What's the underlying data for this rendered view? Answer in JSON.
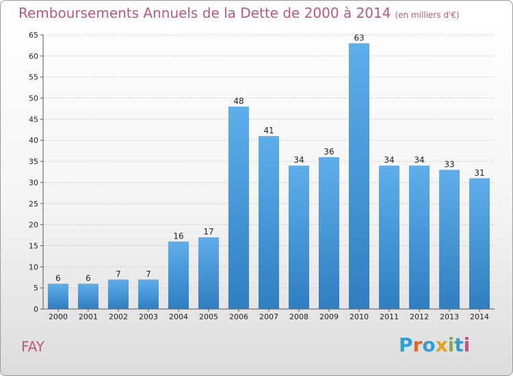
{
  "header": {
    "title": "Remboursements Annuels de la Dette de 2000 à 2014",
    "unit": "(en milliers d'€)"
  },
  "footer": {
    "commune": "FAY",
    "logo": {
      "text": "Proxiti",
      "letters": [
        {
          "ch": "P",
          "color": "#2a9fd8"
        },
        {
          "ch": "r",
          "color": "#e0662c"
        },
        {
          "ch": "o",
          "color": "#2a9fd8"
        },
        {
          "ch": "x",
          "color": "#e2a11f"
        },
        {
          "ch": "i",
          "color": "#7cb342"
        },
        {
          "ch": "t",
          "color": "#2a9fd8"
        },
        {
          "ch": "i",
          "color": "#c0567b"
        }
      ]
    }
  },
  "colors": {
    "bar_top": "#5daeea",
    "bar_bottom": "#2f7fc0",
    "title": "#c0567b",
    "grid": "#c8c8c8",
    "axis_text": "#222222"
  },
  "chart_data": {
    "type": "bar",
    "categories": [
      "2000",
      "2001",
      "2002",
      "2003",
      "2004",
      "2005",
      "2006",
      "2007",
      "2008",
      "2009",
      "2010",
      "2011",
      "2012",
      "2013",
      "2014"
    ],
    "values": [
      6,
      6,
      7,
      7,
      16,
      17,
      48,
      41,
      34,
      36,
      63,
      34,
      34,
      33,
      31
    ],
    "data_labels": [
      "6",
      "6",
      "7",
      "7",
      "16",
      "17",
      "48",
      "41",
      "34",
      "36",
      "63",
      "34",
      "34",
      "33",
      "31"
    ],
    "yticks": [
      0,
      5,
      10,
      15,
      20,
      25,
      30,
      35,
      40,
      45,
      50,
      55,
      60,
      65
    ],
    "ylim": [
      0,
      65
    ],
    "grid": true
  }
}
